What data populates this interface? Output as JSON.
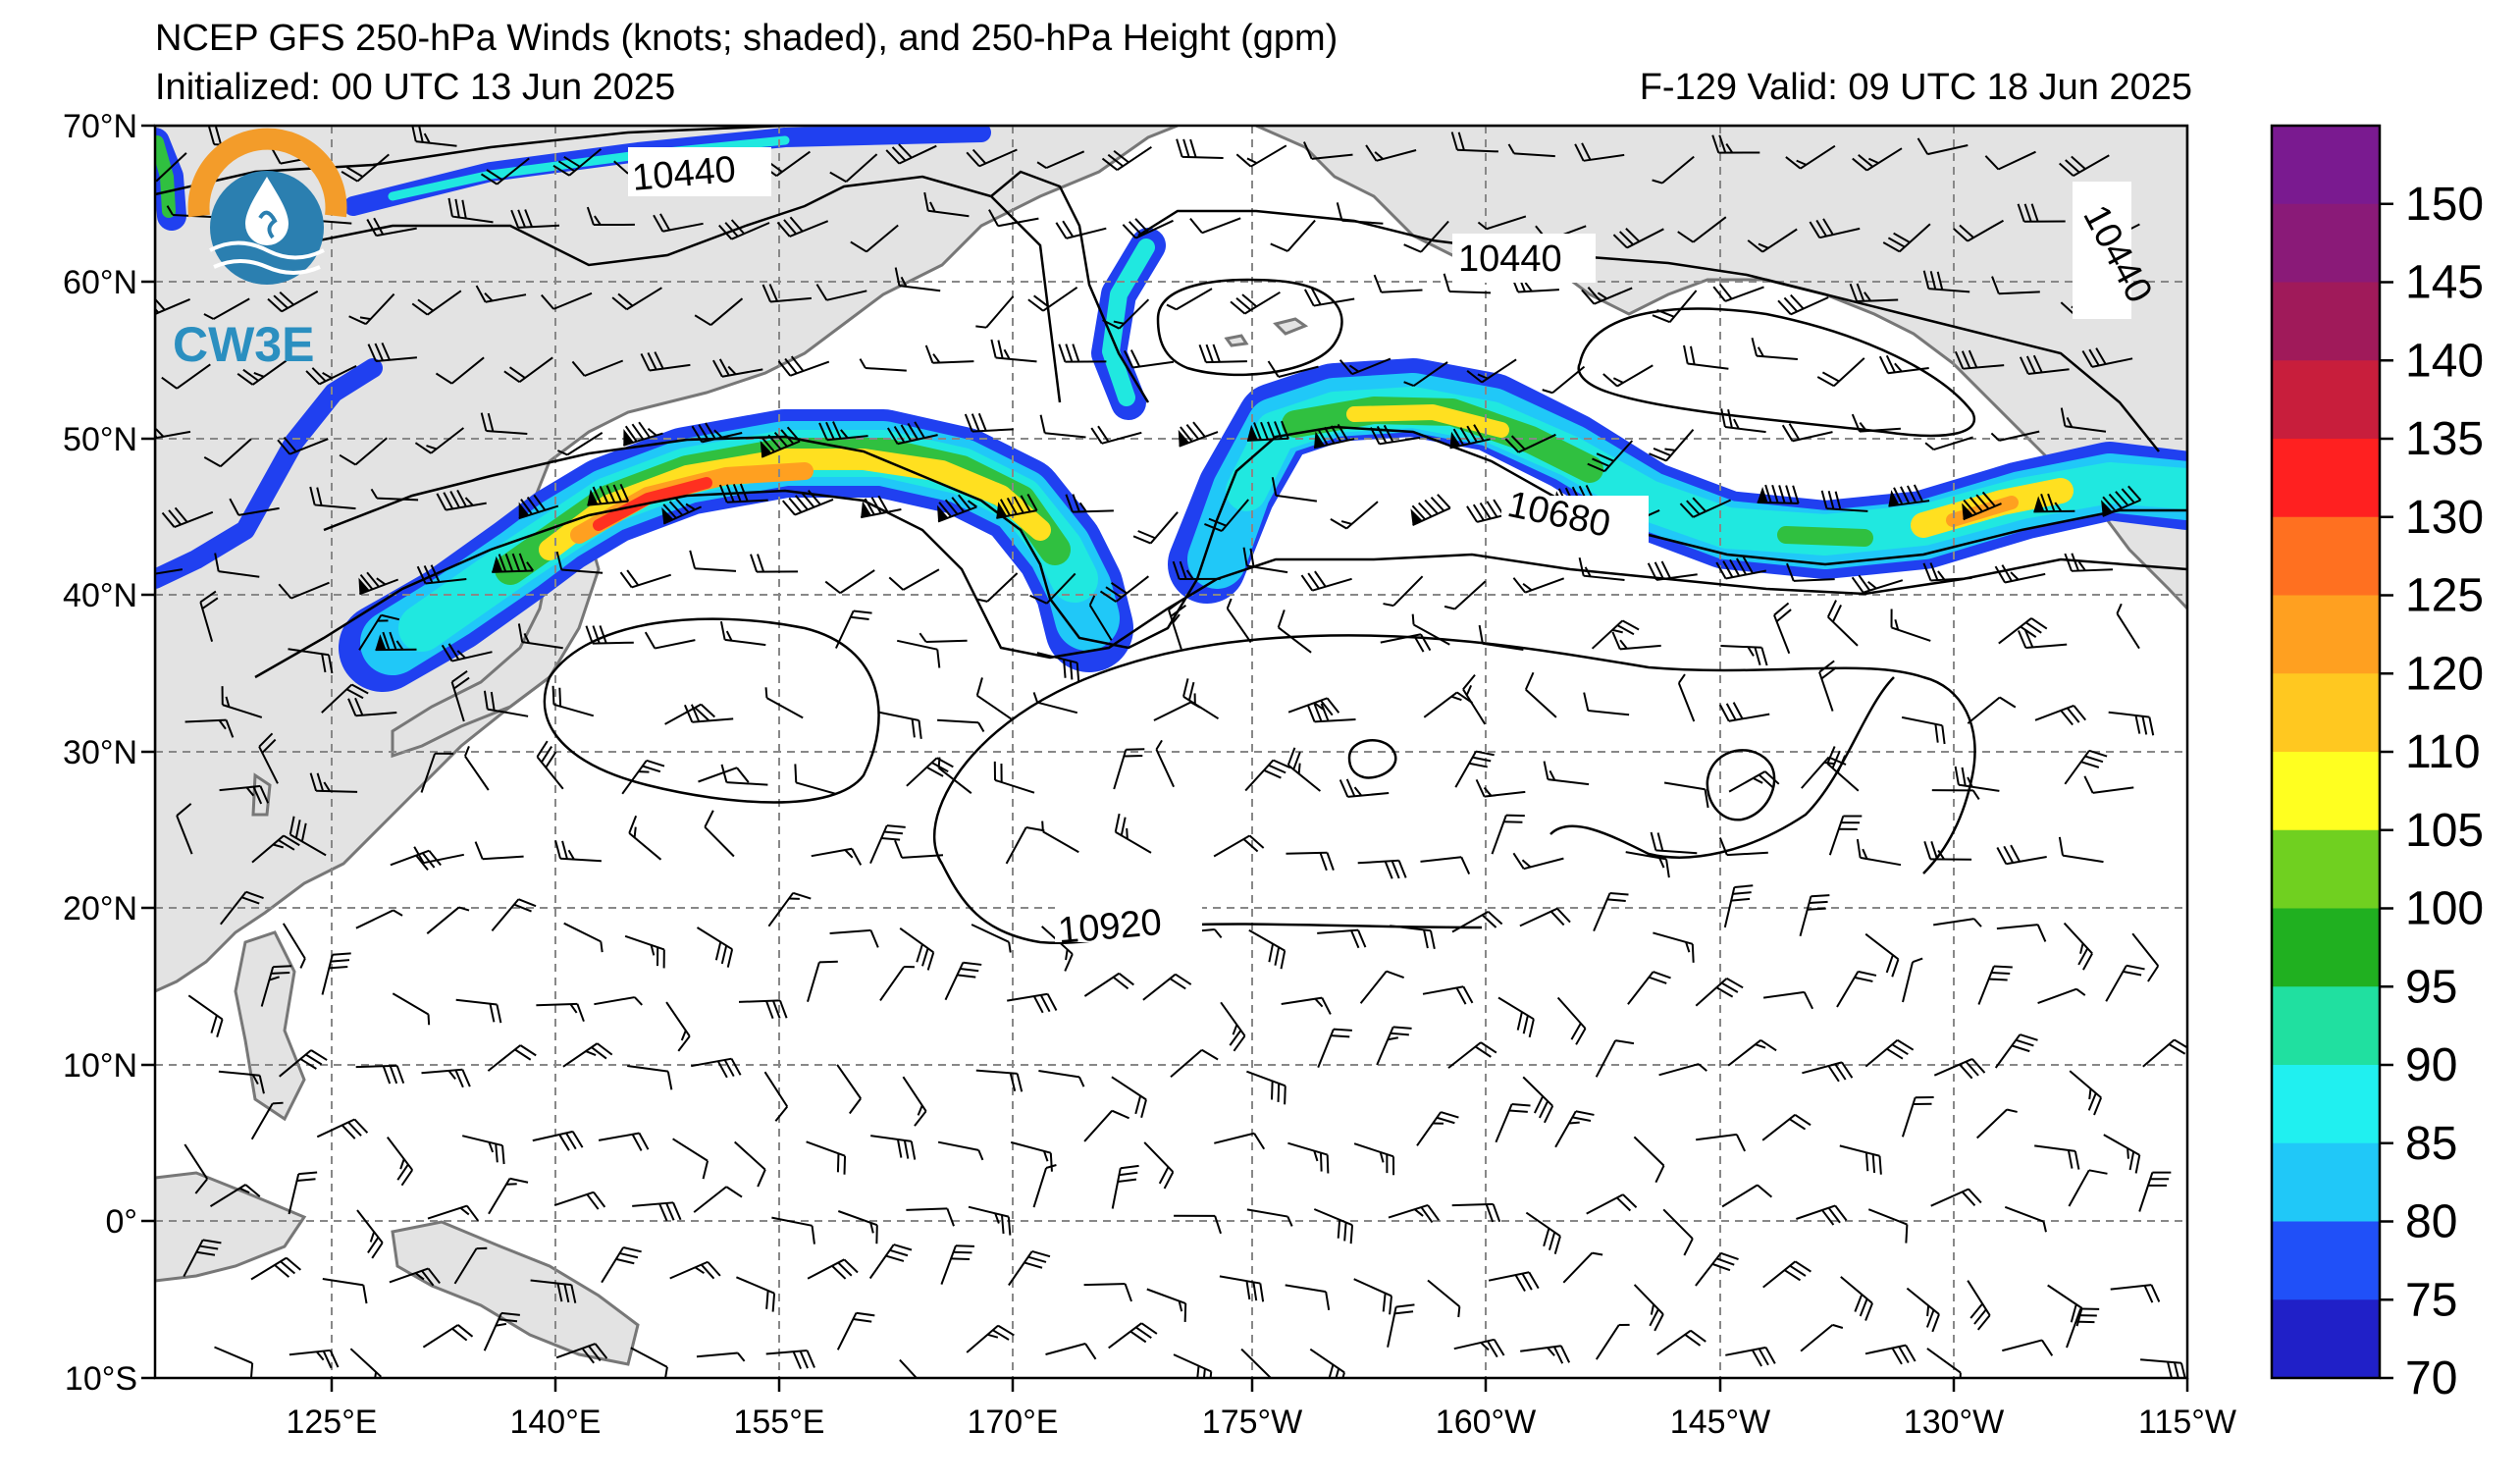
{
  "header": {
    "title": "NCEP GFS 250-hPa Winds (knots; shaded), and 250-hPa Height (gpm)",
    "initialized": "Initialized: 00 UTC 13 Jun 2025",
    "valid": "F-129  Valid: 09 UTC 18 Jun 2025"
  },
  "logo": {
    "text": "CW3E",
    "ring_color": "#f39c2a",
    "drop_color": "#2b8fc0"
  },
  "map": {
    "lat_labels": [
      "70°N",
      "60°N",
      "50°N",
      "40°N",
      "30°N",
      "20°N",
      "10°N",
      "0°",
      "10°S"
    ],
    "lon_labels": [
      "125°E",
      "140°E",
      "155°E",
      "170°E",
      "175°W",
      "160°W",
      "145°W",
      "130°W",
      "115°W"
    ],
    "contour_labels": [
      "10440",
      "10440",
      "10440",
      "10680",
      "10920"
    ]
  },
  "colorbar": {
    "ticks": [
      "150",
      "145",
      "140",
      "135",
      "130",
      "125",
      "120",
      "110",
      "105",
      "100",
      "95",
      "90",
      "85",
      "80",
      "75",
      "70"
    ],
    "colors": [
      "#7a1a90",
      "#8a1a78",
      "#a01a5a",
      "#c81e3c",
      "#ff2020",
      "#ff7020",
      "#ffa020",
      "#ffc820",
      "#ffff20",
      "#70d020",
      "#20b020",
      "#20e0a0",
      "#20f0f0",
      "#20c8f8",
      "#2050f8",
      "#2020c8"
    ]
  },
  "colors": {
    "land": "#e3e3e3",
    "coast": "#777777",
    "grid": "#888888",
    "jet": [
      "#2040f0",
      "#20b0f8",
      "#20e8e0",
      "#30c040",
      "#e0e020",
      "#ffa020",
      "#ff3020"
    ]
  }
}
